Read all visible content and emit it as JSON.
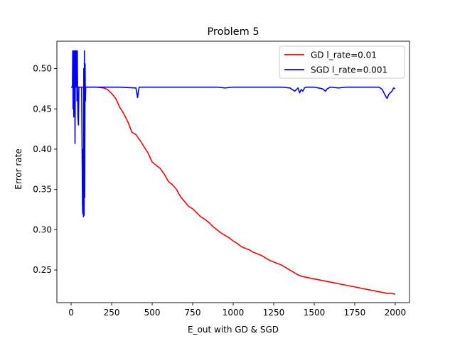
{
  "chart_data": {
    "type": "line",
    "title": "Problem 5",
    "xlabel": "E_out with GD & SGD",
    "ylabel": "Error rate",
    "xlim": [
      -88,
      2088
    ],
    "ylim": [
      0.2095,
      0.534
    ],
    "xticks": [
      0,
      250,
      500,
      750,
      1000,
      1250,
      1500,
      1750,
      2000
    ],
    "yticks": [
      0.25,
      0.3,
      0.35,
      0.4,
      0.45,
      0.5
    ],
    "ytick_labels": [
      "0.25",
      "0.30",
      "0.35",
      "0.40",
      "0.45",
      "0.50"
    ],
    "grid": false,
    "legend": "top-right",
    "series": [
      {
        "name": "GD l_rate=0.01",
        "color": "#ff0000",
        "x": [
          0,
          100,
          150,
          200,
          225,
          250,
          275,
          300,
          325,
          350,
          375,
          400,
          425,
          450,
          475,
          500,
          525,
          550,
          575,
          600,
          625,
          650,
          675,
          700,
          725,
          750,
          775,
          800,
          825,
          850,
          875,
          900,
          925,
          950,
          975,
          1000,
          1025,
          1050,
          1075,
          1100,
          1125,
          1150,
          1175,
          1200,
          1225,
          1250,
          1275,
          1300,
          1325,
          1350,
          1375,
          1400,
          1425,
          1450,
          1475,
          1500,
          1525,
          1550,
          1575,
          1600,
          1625,
          1650,
          1675,
          1700,
          1725,
          1750,
          1775,
          1800,
          1825,
          1850,
          1875,
          1900,
          1925,
          1950,
          1975,
          2000
        ],
        "y": [
          0.477,
          0.477,
          0.477,
          0.476,
          0.474,
          0.469,
          0.463,
          0.452,
          0.444,
          0.434,
          0.421,
          0.418,
          0.411,
          0.403,
          0.395,
          0.384,
          0.38,
          0.376,
          0.369,
          0.36,
          0.356,
          0.35,
          0.341,
          0.335,
          0.329,
          0.326,
          0.321,
          0.316,
          0.313,
          0.309,
          0.304,
          0.3,
          0.296,
          0.293,
          0.29,
          0.286,
          0.283,
          0.279,
          0.277,
          0.275,
          0.272,
          0.27,
          0.268,
          0.265,
          0.262,
          0.26,
          0.258,
          0.256,
          0.253,
          0.25,
          0.247,
          0.244,
          0.242,
          0.241,
          0.24,
          0.239,
          0.238,
          0.237,
          0.236,
          0.235,
          0.234,
          0.233,
          0.232,
          0.231,
          0.23,
          0.229,
          0.228,
          0.227,
          0.226,
          0.225,
          0.224,
          0.223,
          0.222,
          0.221,
          0.221,
          0.22
        ]
      },
      {
        "name": "SGD l_rate=0.001",
        "color": "#0000ff",
        "x": [
          0,
          5,
          8,
          10,
          12,
          14,
          16,
          18,
          20,
          22,
          24,
          26,
          28,
          30,
          32,
          34,
          36,
          38,
          40,
          42,
          45,
          48,
          50,
          55,
          60,
          65,
          70,
          72,
          74,
          76,
          78,
          80,
          82,
          84,
          86,
          88,
          90,
          100,
          150,
          200,
          300,
          400,
          405,
          410,
          415,
          420,
          430,
          500,
          600,
          700,
          800,
          900,
          950,
          1000,
          1100,
          1200,
          1300,
          1350,
          1380,
          1400,
          1410,
          1420,
          1430,
          1440,
          1450,
          1480,
          1500,
          1550,
          1570,
          1580,
          1600,
          1650,
          1700,
          1800,
          1900,
          1920,
          1940,
          1950,
          1960,
          1970,
          1980,
          1990,
          2000
        ],
        "y": [
          0.477,
          0.477,
          0.477,
          0.522,
          0.45,
          0.522,
          0.44,
          0.522,
          0.445,
          0.522,
          0.407,
          0.522,
          0.5,
          0.522,
          0.478,
          0.522,
          0.46,
          0.522,
          0.47,
          0.44,
          0.43,
          0.477,
          0.477,
          0.477,
          0.477,
          0.477,
          0.33,
          0.32,
          0.4,
          0.316,
          0.5,
          0.318,
          0.522,
          0.34,
          0.506,
          0.46,
          0.477,
          0.477,
          0.477,
          0.477,
          0.477,
          0.476,
          0.47,
          0.464,
          0.472,
          0.477,
          0.477,
          0.477,
          0.477,
          0.477,
          0.477,
          0.477,
          0.476,
          0.477,
          0.477,
          0.477,
          0.477,
          0.476,
          0.472,
          0.476,
          0.47,
          0.474,
          0.472,
          0.476,
          0.477,
          0.477,
          0.477,
          0.475,
          0.472,
          0.475,
          0.477,
          0.476,
          0.477,
          0.477,
          0.477,
          0.474,
          0.466,
          0.463,
          0.468,
          0.47,
          0.472,
          0.476,
          0.475
        ]
      }
    ]
  }
}
